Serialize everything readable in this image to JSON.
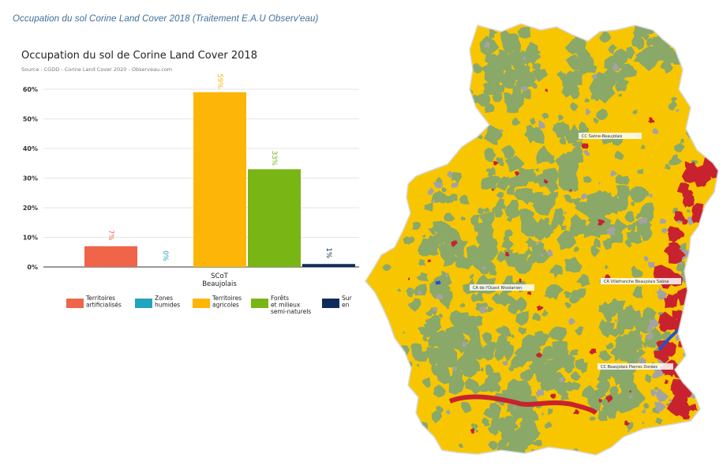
{
  "caption": "Occupation du sol Corine Land Cover 2018 (Traitement E.A.U Observ'eau)",
  "chart_data": {
    "type": "bar",
    "title": "Occupation du sol de Corine Land Cover 2018",
    "subtitle": "Source : CGDD - Corine Land Cover 2020 - Observeau.com",
    "categories": [
      "SCoT Beaujolais"
    ],
    "category_label_lines": [
      "SCoT",
      "Beaujolais"
    ],
    "series": [
      {
        "name": "Territoires artificialisés",
        "legend_lines": [
          "Territoires",
          "artificialisés"
        ],
        "values": [
          7
        ],
        "color": "#f0644a",
        "label": "7%"
      },
      {
        "name": "Zones humides",
        "legend_lines": [
          "Zones",
          "humides"
        ],
        "values": [
          0
        ],
        "color": "#20a4c0",
        "label": "0%"
      },
      {
        "name": "Territoires agricoles",
        "legend_lines": [
          "Territoires",
          "agricoles"
        ],
        "values": [
          59
        ],
        "color": "#fdb507",
        "label": "59%"
      },
      {
        "name": "Forêts et milieux semi-naturels",
        "legend_lines": [
          "Forêts",
          "et milieux",
          "semi-naturels"
        ],
        "values": [
          33
        ],
        "color": "#7ab516",
        "label": "33%"
      },
      {
        "name": "Surfaces en eau",
        "legend_lines": [
          "Sur",
          "en"
        ],
        "values": [
          1
        ],
        "color": "#0f2b5e",
        "label": "1%"
      }
    ],
    "yticks": [
      "60%",
      "50%",
      "40%",
      "30%",
      "20%",
      "10%",
      "0%"
    ],
    "ylim": [
      0,
      60
    ],
    "xlabel": "",
    "ylabel": ""
  },
  "map": {
    "colors": {
      "agricultural": "#f7c600",
      "forest": "#8aa868",
      "urban": "#c8222e",
      "grey": "#a3a3a3",
      "water": "#2a4fc8"
    },
    "labels": [
      {
        "name": "map-label-saone-beaujolais",
        "text": "CC Saône-Beaujolais"
      },
      {
        "name": "map-label-ouest-rhodanien",
        "text": "CA de l'Ouest Rhodanien"
      },
      {
        "name": "map-label-villefranche",
        "text": "CA Villefranche Beaujolais Saône"
      },
      {
        "name": "map-label-pierres-dorees",
        "text": "CC Beaujolais Pierres Dorées"
      }
    ]
  }
}
